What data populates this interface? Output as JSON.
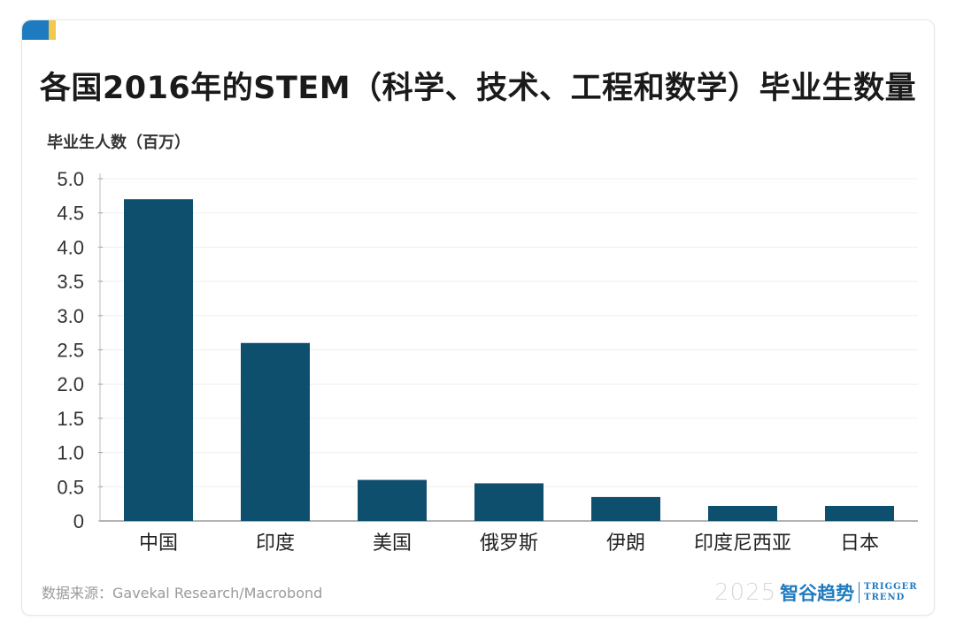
{
  "title": "各国2016年的STEM（科学、技术、工程和数学）毕业生数量",
  "source": "数据来源：Gavekal Research/Macrobond",
  "brand": {
    "year": "2025",
    "name": "智谷趋势",
    "en_line1": "TRIGGER",
    "en_line2": "TREND"
  },
  "colors": {
    "bar": "#0f4f6e",
    "accent_blue": "#1f7bc0",
    "accent_yellow": "#f2c94c"
  },
  "chart_data": {
    "type": "bar",
    "title": "各国2016年的STEM（科学、技术、工程和数学）毕业生数量",
    "ylabel": "毕业生人数（百万）",
    "xlabel": "",
    "categories": [
      "中国",
      "印度",
      "美国",
      "俄罗斯",
      "伊朗",
      "印度尼西亚",
      "日本"
    ],
    "values": [
      4.7,
      2.6,
      0.6,
      0.55,
      0.35,
      0.22,
      0.22
    ],
    "ylim": [
      0,
      5.0
    ],
    "yticks": [
      "0",
      "0.5",
      "1.0",
      "1.5",
      "2.0",
      "2.5",
      "3.0",
      "3.5",
      "4.0",
      "4.5",
      "5.0"
    ],
    "grid": true
  }
}
